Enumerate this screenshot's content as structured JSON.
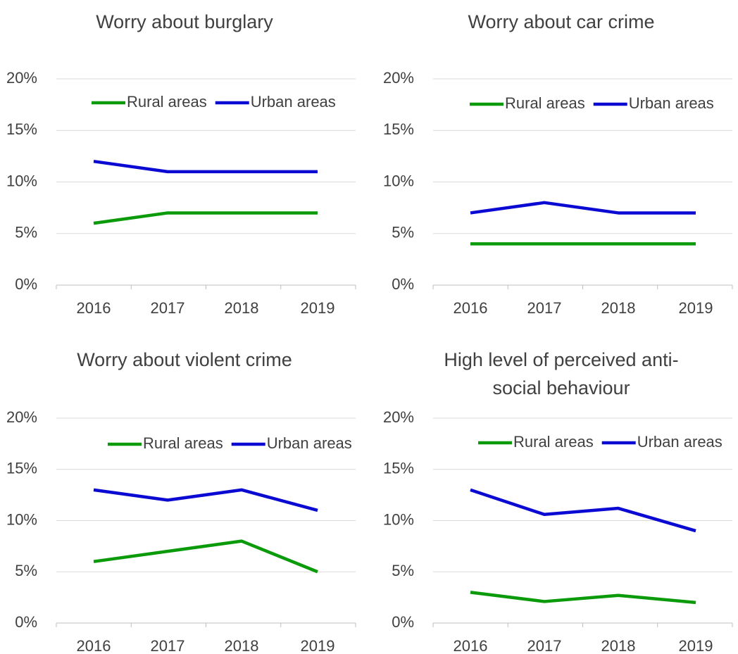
{
  "chart_data": [
    {
      "type": "line",
      "title_lines": [
        "Worry about burglary"
      ],
      "categories": [
        "2016",
        "2017",
        "2018",
        "2019"
      ],
      "y_tick_labels": [
        "0%",
        "5%",
        "10%",
        "15%",
        "20%"
      ],
      "ylim": [
        0,
        20
      ],
      "grid": true,
      "legend_position": "top",
      "series": [
        {
          "name": "Rural areas",
          "color": "#0a9a0a",
          "values": [
            6,
            7,
            7,
            7
          ]
        },
        {
          "name": "Urban areas",
          "color": "#0a0ad2",
          "values": [
            12,
            11,
            11,
            11
          ]
        }
      ]
    },
    {
      "type": "line",
      "title_lines": [
        "Worry about car crime"
      ],
      "categories": [
        "2016",
        "2017",
        "2018",
        "2019"
      ],
      "y_tick_labels": [
        "0%",
        "5%",
        "10%",
        "15%",
        "20%"
      ],
      "ylim": [
        0,
        20
      ],
      "grid": true,
      "legend_position": "top",
      "series": [
        {
          "name": "Rural areas",
          "color": "#0a9a0a",
          "values": [
            4,
            4,
            4,
            4
          ]
        },
        {
          "name": "Urban areas",
          "color": "#0a0ad2",
          "values": [
            7,
            8,
            7,
            7
          ]
        }
      ]
    },
    {
      "type": "line",
      "title_lines": [
        "Worry about violent crime"
      ],
      "categories": [
        "2016",
        "2017",
        "2018",
        "2019"
      ],
      "y_tick_labels": [
        "0%",
        "5%",
        "10%",
        "15%",
        "20%"
      ],
      "ylim": [
        0,
        20
      ],
      "grid": true,
      "legend_position": "top",
      "series": [
        {
          "name": "Rural areas",
          "color": "#0a9a0a",
          "values": [
            6,
            7,
            8,
            5
          ]
        },
        {
          "name": "Urban areas",
          "color": "#0a0ad2",
          "values": [
            13,
            12,
            13,
            11
          ]
        }
      ]
    },
    {
      "type": "line",
      "title_lines": [
        "High level of perceived anti-",
        "social behaviour"
      ],
      "categories": [
        "2016",
        "2017",
        "2018",
        "2019"
      ],
      "y_tick_labels": [
        "0%",
        "5%",
        "10%",
        "15%",
        "20%"
      ],
      "ylim": [
        0,
        20
      ],
      "grid": true,
      "legend_position": "top",
      "series": [
        {
          "name": "Rural areas",
          "color": "#0a9a0a",
          "values": [
            3,
            2.1,
            2.7,
            2
          ]
        },
        {
          "name": "Urban areas",
          "color": "#0a0ad2",
          "values": [
            13,
            10.6,
            11.2,
            9
          ]
        }
      ]
    }
  ]
}
